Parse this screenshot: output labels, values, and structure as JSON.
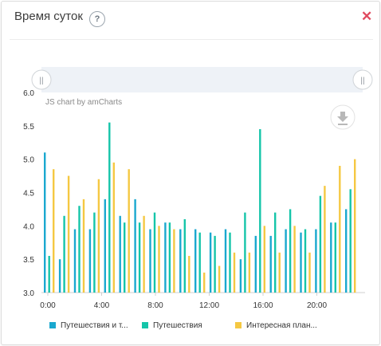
{
  "header": {
    "title": "Время суток",
    "help_label": "?",
    "close_label": "✕"
  },
  "chart_credit": "JS chart by amCharts",
  "export_icon": "download-icon",
  "scrollbar_grip": "||",
  "legend": [
    "Путешествия и т...",
    "Путешествия",
    "Интересная план..."
  ],
  "chart_data": {
    "type": "bar",
    "x_ticks": [
      "0:00",
      "4:00",
      "8:00",
      "12:00",
      "16:00",
      "20:00"
    ],
    "y_ticks": [
      "3.0",
      "3.5",
      "4.0",
      "4.5",
      "5.0",
      "5.5",
      "6.0"
    ],
    "ylim": [
      3.0,
      6.0
    ],
    "series": [
      {
        "name": "Путешествия и т...",
        "color": "#1aa8cf",
        "values": [
          5.1,
          3.5,
          3.95,
          3.95,
          4.4,
          4.15,
          4.4,
          3.95,
          4.05,
          3.95,
          3.95,
          3.9,
          3.95,
          3.5,
          3.85,
          3.85,
          3.95,
          3.9,
          3.95,
          4.05,
          4.25
        ]
      },
      {
        "name": "Путешествия",
        "color": "#15c5a9",
        "values": [
          3.55,
          4.15,
          4.3,
          4.2,
          5.55,
          4.05,
          4.05,
          4.2,
          4.05,
          4.1,
          3.9,
          3.85,
          3.9,
          4.2,
          5.45,
          4.2,
          4.25,
          3.95,
          4.45,
          4.05,
          4.55
        ]
      },
      {
        "name": "Интересная план...",
        "color": "#f5c842",
        "values": [
          4.85,
          4.75,
          4.4,
          4.7,
          4.95,
          4.85,
          4.15,
          4.0,
          3.95,
          3.55,
          3.3,
          3.4,
          3.6,
          3.6,
          4.0,
          3.6,
          4.0,
          3.6,
          4.6,
          4.9,
          5.0
        ]
      }
    ]
  }
}
